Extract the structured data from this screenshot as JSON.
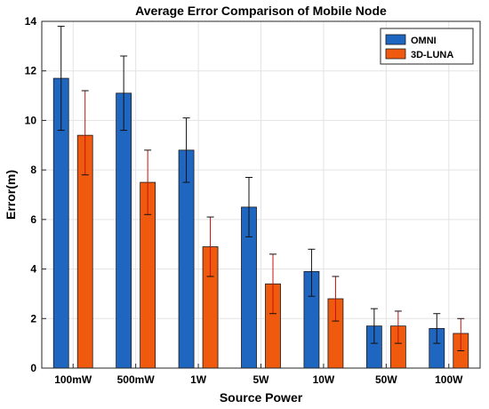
{
  "chart_data": {
    "type": "bar",
    "title": "Average Error Comparison of Mobile Node",
    "xlabel": "Source Power",
    "ylabel": "Error(m)",
    "categories": [
      "100mW",
      "500mW",
      "1W",
      "5W",
      "10W",
      "50W",
      "100W"
    ],
    "ylim": [
      0,
      14
    ],
    "yticks": [
      0,
      2,
      4,
      6,
      8,
      10,
      12,
      14
    ],
    "grid": true,
    "legend_position": "top-right",
    "series": [
      {
        "name": "OMNI",
        "color": "#1f66c1",
        "values": [
          11.7,
          11.1,
          8.8,
          6.5,
          3.9,
          1.7,
          1.6
        ],
        "error_low": [
          9.6,
          9.6,
          7.5,
          5.3,
          2.9,
          1.0,
          1.0
        ],
        "error_high": [
          13.8,
          12.6,
          10.1,
          7.7,
          4.8,
          2.4,
          2.2
        ]
      },
      {
        "name": "3D-LUNA",
        "color": "#ef5a0f",
        "values": [
          9.4,
          7.5,
          4.9,
          3.4,
          2.8,
          1.7,
          1.4
        ],
        "error_low": [
          7.8,
          6.2,
          3.7,
          2.2,
          1.9,
          1.0,
          0.7
        ],
        "error_high": [
          11.2,
          8.8,
          6.1,
          4.6,
          3.7,
          2.3,
          2.0
        ]
      }
    ]
  }
}
